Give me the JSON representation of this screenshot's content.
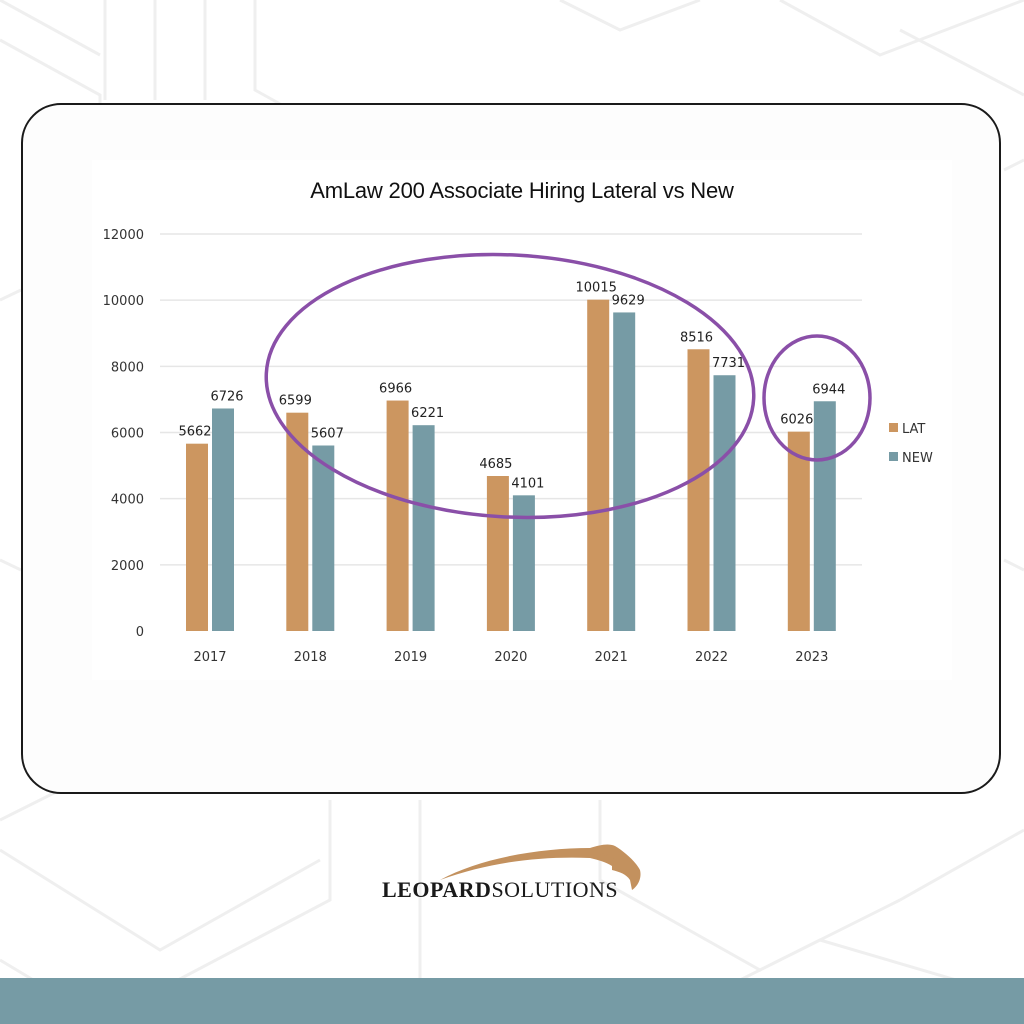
{
  "chart_data": {
    "type": "bar",
    "title": "AmLaw 200 Associate Hiring Lateral vs New",
    "xlabel": "",
    "ylabel": "",
    "categories": [
      "2017",
      "2018",
      "2019",
      "2020",
      "2021",
      "2022",
      "2023"
    ],
    "series": [
      {
        "name": "LAT",
        "color": "#cc9660",
        "values": [
          5662,
          6599,
          6966,
          4685,
          10015,
          8516,
          6026
        ]
      },
      {
        "name": "NEW",
        "color": "#769ba5",
        "values": [
          6726,
          5607,
          6221,
          4101,
          9629,
          7731,
          6944
        ]
      }
    ],
    "ylim": [
      0,
      12000
    ],
    "yticks": [
      0,
      2000,
      4000,
      6000,
      8000,
      10000,
      12000
    ],
    "grid": true,
    "legend_position": "right",
    "data_labels": true,
    "annotations": [
      {
        "type": "ellipse",
        "color": "#8a4fa8",
        "covers": [
          "2018",
          "2019",
          "2020",
          "2021",
          "2022"
        ]
      },
      {
        "type": "circle",
        "color": "#8a4fa8",
        "covers": [
          "2023"
        ]
      }
    ]
  },
  "brand": {
    "name_bold": "LEOPARD",
    "name_light": "SOLUTIONS",
    "accent_color": "#c3915e",
    "band_color": "#769ba5"
  }
}
